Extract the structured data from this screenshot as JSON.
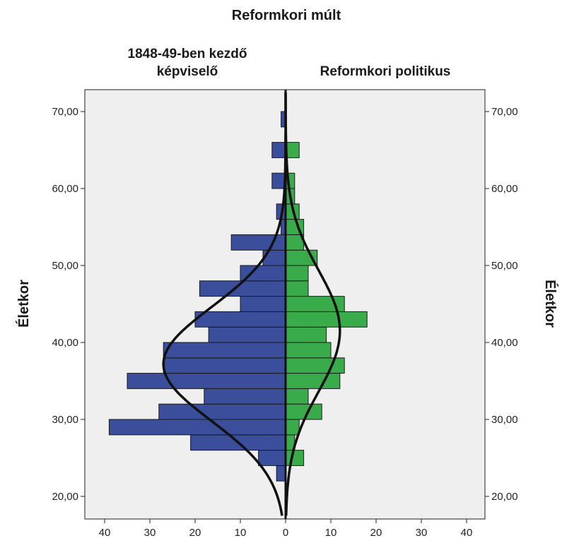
{
  "chart_data": {
    "type": "bar",
    "orientation": "population-pyramid",
    "title": "Reformkori múlt",
    "left_panel_title": [
      "1848-49-ben kezdő",
      "képviselő"
    ],
    "right_panel_title": "Reformkori politikus",
    "ylabel": "Életkor",
    "ylim": [
      17.5,
      72.5
    ],
    "yticks": [
      "20,00",
      "30,00",
      "40,00",
      "50,00",
      "60,00",
      "70,00"
    ],
    "ytick_values": [
      20,
      30,
      40,
      50,
      60,
      70
    ],
    "xlim": [
      -40,
      40
    ],
    "xticks": [
      "40",
      "30",
      "20",
      "10",
      "0",
      "10",
      "20",
      "30",
      "40"
    ],
    "xtick_values": [
      -40,
      -30,
      -20,
      -10,
      0,
      10,
      20,
      30,
      40
    ],
    "bin_width": 2,
    "bins_lower": [
      22,
      24,
      26,
      28,
      30,
      32,
      34,
      36,
      38,
      40,
      42,
      44,
      46,
      48,
      50,
      52,
      54,
      56,
      58,
      60,
      62,
      64,
      66,
      68,
      70
    ],
    "series": [
      {
        "name": "1848-49-ben kezdő képviselő",
        "color": "#3b4e9b",
        "side": "left",
        "values": [
          2,
          6,
          21,
          39,
          28,
          18,
          35,
          27,
          27,
          17,
          20,
          10,
          19,
          10,
          5,
          12,
          1,
          2,
          0,
          3,
          0,
          3,
          0,
          1,
          0
        ]
      },
      {
        "name": "Reformkori politikus",
        "color": "#3aab4b",
        "side": "right",
        "values": [
          0,
          4,
          2,
          3,
          8,
          5,
          12,
          13,
          10,
          9,
          18,
          13,
          5,
          5,
          7,
          4,
          4,
          3,
          2,
          2,
          0,
          3,
          0,
          0,
          0
        ]
      }
    ],
    "normal_curves": [
      {
        "side": "left",
        "mean": 37.2,
        "sd": 7.4,
        "peak": 27
      },
      {
        "side": "right",
        "mean": 41.5,
        "sd": 7.9,
        "peak": 12
      }
    ],
    "background_color": "#efefef",
    "grid": false,
    "legend": "none"
  }
}
